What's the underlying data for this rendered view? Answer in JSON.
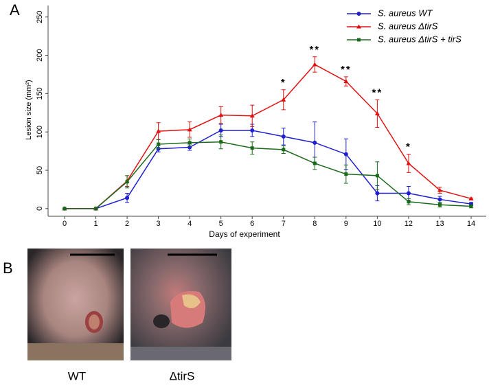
{
  "panel_labels": [
    "A",
    "B"
  ],
  "photo_labels": [
    "WT",
    "ΔtirS"
  ],
  "chart_data": {
    "type": "line",
    "x_label": "Days of experiment",
    "y_label": "Lesion size (mm²)",
    "categories": [
      "0",
      "1",
      "2",
      "3",
      "4",
      "5",
      "6",
      "7",
      "8",
      "9",
      "10",
      "12",
      "13",
      "14"
    ],
    "series": [
      {
        "name": "S. aureus WT",
        "color": "#1f1fd0",
        "marker": "circle",
        "values": [
          0,
          0,
          14,
          78,
          80,
          102,
          102,
          94,
          86,
          71,
          20,
          20,
          12,
          6
        ],
        "errors": [
          0,
          0,
          6,
          4,
          4,
          8,
          8,
          11,
          27,
          20,
          10,
          9,
          4,
          2
        ]
      },
      {
        "name": "S. aureus ΔtirS",
        "color": "#e01010",
        "marker": "triangle",
        "values": [
          0,
          0,
          36,
          101,
          103,
          122,
          121,
          142,
          188,
          166,
          124,
          59,
          24,
          13
        ],
        "errors": [
          0,
          0,
          7,
          11,
          10,
          11,
          14,
          13,
          10,
          6,
          18,
          12,
          4,
          1
        ]
      },
      {
        "name": "S. aureus ΔtirS + tirS",
        "color": "#1a6a1a",
        "marker": "square",
        "values": [
          0,
          0,
          35,
          84,
          86,
          87,
          79,
          77,
          59,
          45,
          43,
          9,
          5,
          3
        ],
        "errors": [
          0,
          0,
          8,
          6,
          5,
          9,
          8,
          5,
          8,
          12,
          18,
          4,
          3,
          2
        ]
      }
    ],
    "ylim": [
      -10,
      265
    ],
    "yticks": [
      0,
      50,
      100,
      150,
      200,
      250
    ],
    "annotations": [
      {
        "x": "7",
        "text": "*"
      },
      {
        "x": "8",
        "text": "**"
      },
      {
        "x": "9",
        "text": "**"
      },
      {
        "x": "10",
        "text": "**"
      },
      {
        "x": "12",
        "text": "*"
      }
    ]
  }
}
